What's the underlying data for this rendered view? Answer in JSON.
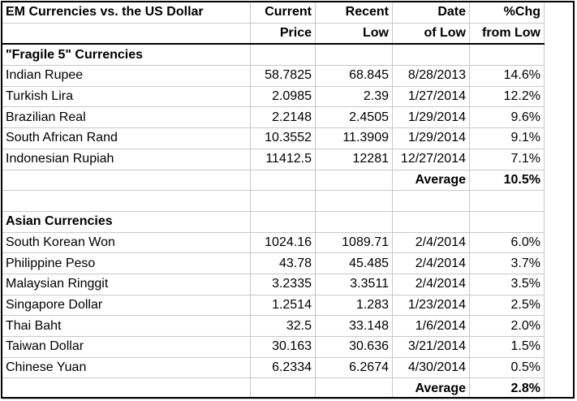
{
  "header": {
    "title": "EM Currencies vs. the US Dollar",
    "col_current_1": "Current",
    "col_current_2": "Price",
    "col_recent_1": "Recent",
    "col_recent_2": "Low",
    "col_date_1": "Date",
    "col_date_2": "of Low",
    "col_chg_1": "%Chg",
    "col_chg_2": "from Low"
  },
  "fragile": {
    "section_title": "\"Fragile 5\" Currencies",
    "rows": [
      {
        "name": "Indian Rupee",
        "price": "58.7825",
        "low": "68.845",
        "date": "8/28/2013",
        "chg": "14.6%"
      },
      {
        "name": "Turkish Lira",
        "price": "2.0985",
        "low": "2.39",
        "date": "1/27/2014",
        "chg": "12.2%"
      },
      {
        "name": "Brazilian Real",
        "price": "2.2148",
        "low": "2.4505",
        "date": "1/29/2014",
        "chg": "9.6%"
      },
      {
        "name": "South African Rand",
        "price": "10.3552",
        "low": "11.3909",
        "date": "1/29/2014",
        "chg": "9.1%"
      },
      {
        "name": "Indonesian Rupiah",
        "price": "11412.5",
        "low": "12281",
        "date": "12/27/2014",
        "chg": "7.1%"
      }
    ],
    "average_label": "Average",
    "average_value": "10.5%"
  },
  "asian": {
    "section_title": "Asian Currencies",
    "rows": [
      {
        "name": "South Korean Won",
        "price": "1024.16",
        "low": "1089.71",
        "date": "2/4/2014",
        "chg": "6.0%"
      },
      {
        "name": "Philippine Peso",
        "price": "43.78",
        "low": "45.485",
        "date": "2/4/2014",
        "chg": "3.7%"
      },
      {
        "name": "Malaysian Ringgit",
        "price": "3.2335",
        "low": "3.3511",
        "date": "2/4/2014",
        "chg": "3.5%"
      },
      {
        "name": "Singapore Dollar",
        "price": "1.2514",
        "low": "1.283",
        "date": "1/23/2014",
        "chg": "2.5%"
      },
      {
        "name": "Thai Baht",
        "price": "32.5",
        "low": "33.148",
        "date": "1/6/2014",
        "chg": "2.0%"
      },
      {
        "name": "Taiwan Dollar",
        "price": "30.163",
        "low": "30.636",
        "date": "3/21/2014",
        "chg": "1.5%"
      },
      {
        "name": "Chinese Yuan",
        "price": "6.2334",
        "low": "6.2674",
        "date": "4/30/2014",
        "chg": "0.5%"
      }
    ],
    "average_label": "Average",
    "average_value": "2.8%"
  }
}
